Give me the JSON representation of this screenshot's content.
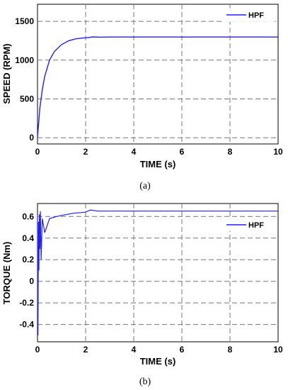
{
  "chart_data": [
    {
      "type": "line",
      "caption": "(a)",
      "xlabel": "TIME (s)",
      "ylabel": "SPEED (RPM)",
      "xlim": [
        0,
        10
      ],
      "ylim": [
        -80,
        1720
      ],
      "xticks": [
        "0",
        "2",
        "4",
        "6",
        "8",
        "10"
      ],
      "yticks": [
        "0",
        "500",
        "1000",
        "1500"
      ],
      "grid": true,
      "legend_position": "top-right",
      "series": [
        {
          "name": "HPF",
          "color": "#1f1fff",
          "x": [
            0,
            0.05,
            0.1,
            0.2,
            0.3,
            0.5,
            0.7,
            1.0,
            1.3,
            1.6,
            1.9,
            2.1,
            2.3,
            2.6,
            3.0,
            4.0,
            5.0,
            6.0,
            7.0,
            8.0,
            9.0,
            10.0
          ],
          "y": [
            0,
            200,
            390,
            620,
            790,
            1000,
            1110,
            1200,
            1250,
            1275,
            1285,
            1290,
            1300,
            1296,
            1298,
            1298,
            1298,
            1298,
            1298,
            1298,
            1298,
            1298
          ]
        }
      ]
    },
    {
      "type": "line",
      "caption": "(b)",
      "xlabel": "TIME (s)",
      "ylabel": "TORQUE (Nm)",
      "xlim": [
        0,
        10
      ],
      "ylim": [
        -0.56,
        0.72
      ],
      "xticks": [
        "0",
        "2",
        "4",
        "6",
        "8",
        "10"
      ],
      "yticks": [
        "-0.4",
        "-0.2",
        "0",
        "0.2",
        "0.4",
        "0.6"
      ],
      "grid": true,
      "legend_position": "top-right",
      "series": [
        {
          "name": "HPF",
          "color": "#1f1fff",
          "x": [
            0,
            0.02,
            0.04,
            0.06,
            0.08,
            0.1,
            0.12,
            0.15,
            0.2,
            0.3,
            0.5,
            0.8,
            1.0,
            1.5,
            2.0,
            2.2,
            2.5,
            3.0,
            4.0,
            6.0,
            8.0,
            10.0
          ],
          "y": [
            0.6,
            -0.5,
            0.55,
            0.1,
            0.62,
            0.3,
            0.65,
            0.2,
            0.58,
            0.45,
            0.58,
            0.6,
            0.61,
            0.63,
            0.64,
            0.66,
            0.65,
            0.65,
            0.65,
            0.65,
            0.65,
            0.65
          ]
        }
      ]
    }
  ]
}
